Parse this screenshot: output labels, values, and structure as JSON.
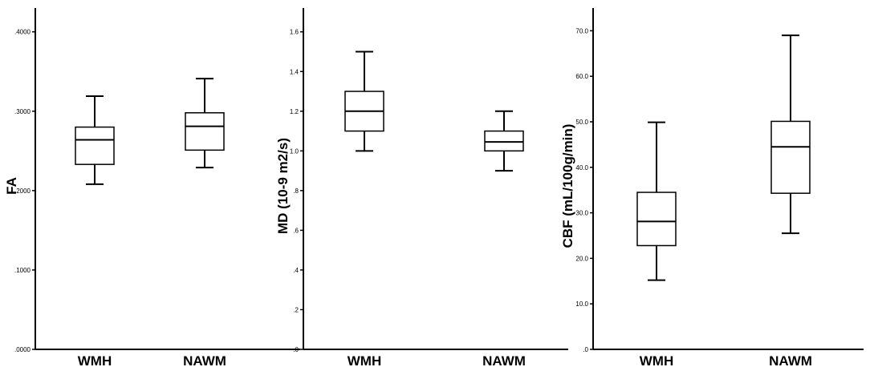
{
  "chart_data": [
    {
      "type": "box",
      "ylabel": "FA",
      "categories": [
        "WMH",
        "NAWM"
      ],
      "ylim": [
        0,
        0.43
      ],
      "yticks": [
        0.0,
        0.1,
        0.2,
        0.3,
        0.4
      ],
      "ytick_labels": [
        ".0000",
        ".1000",
        ".2000",
        ".3000",
        ".4000"
      ],
      "boxes": [
        {
          "category": "WMH",
          "min": 0.208,
          "q1": 0.233,
          "median": 0.264,
          "q3": 0.28,
          "max": 0.319
        },
        {
          "category": "NAWM",
          "min": 0.229,
          "q1": 0.251,
          "median": 0.281,
          "q3": 0.298,
          "max": 0.341
        }
      ]
    },
    {
      "type": "box",
      "ylabel": "MD (10-9 m2/s)",
      "categories": [
        "WMH",
        "NAWM"
      ],
      "ylim": [
        0,
        1.72
      ],
      "yticks": [
        0.0,
        0.2,
        0.4,
        0.6,
        0.8,
        1.0,
        1.2,
        1.4,
        1.6
      ],
      "ytick_labels": [
        ".0",
        ".2",
        ".4",
        ".6",
        ".8",
        "1.0",
        "1.2",
        "1.4",
        "1.6"
      ],
      "boxes": [
        {
          "category": "WMH",
          "min": 1.0,
          "q1": 1.1,
          "median": 1.2,
          "q3": 1.3,
          "max": 1.5
        },
        {
          "category": "NAWM",
          "min": 0.9,
          "q1": 1.0,
          "median": 1.045,
          "q3": 1.1,
          "max": 1.2
        }
      ]
    },
    {
      "type": "box",
      "ylabel": "CBF (mL/100g/min)",
      "categories": [
        "WMH",
        "NAWM"
      ],
      "ylim": [
        0,
        75
      ],
      "yticks": [
        0,
        10,
        20,
        30,
        40,
        50,
        60,
        70
      ],
      "ytick_labels": [
        ".0",
        "10.0",
        "20.0",
        "30.0",
        "40.0",
        "50.0",
        "60.0",
        "70.0"
      ],
      "boxes": [
        {
          "category": "WMH",
          "min": 15.2,
          "q1": 22.8,
          "median": 28.1,
          "q3": 34.5,
          "max": 49.9
        },
        {
          "category": "NAWM",
          "min": 25.5,
          "q1": 34.3,
          "median": 44.5,
          "q3": 50.1,
          "max": 69.0
        }
      ]
    }
  ]
}
